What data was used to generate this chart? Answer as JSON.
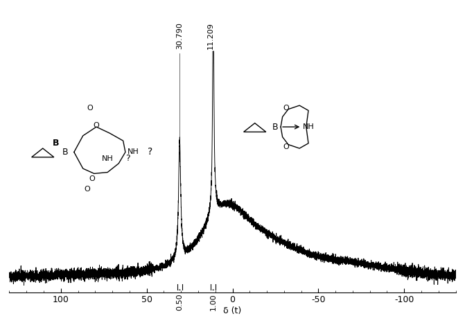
{
  "title": "",
  "xlabel": "δ (t)",
  "xmin": 130,
  "xmax": -130,
  "ymin": -0.05,
  "ymax": 1.0,
  "peak1_ppm": 30.79,
  "peak2_ppm": 11.209,
  "peak1_label": "30.790",
  "peak2_label": "11.209",
  "integral1_label": "0.50",
  "integral2_label": "1.00",
  "background_color": "#ffffff",
  "signal_color": "#000000",
  "axis_tick_color": "#000000",
  "fontsize_peak": 8,
  "fontsize_axis": 9,
  "fontsize_integral": 8
}
